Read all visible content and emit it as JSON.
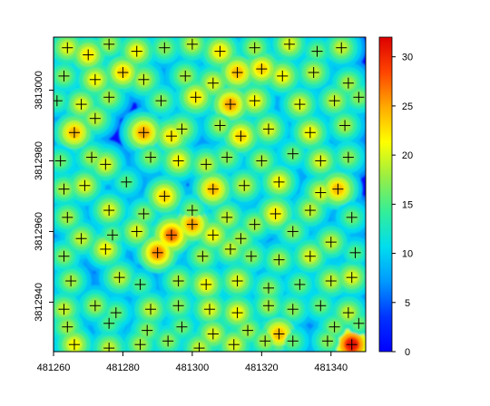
{
  "chart_data": {
    "type": "heatmap",
    "title": "",
    "xlabel": "",
    "ylabel": "",
    "xlim": [
      481260,
      481350
    ],
    "ylim": [
      3812926,
      3813015
    ],
    "x_ticks": [
      481260,
      481280,
      481300,
      481320,
      481340
    ],
    "x_tick_labels": [
      "481260",
      "481280",
      "481300",
      "481320",
      "481340"
    ],
    "y_ticks": [
      3812940,
      3812960,
      3812980,
      3813000
    ],
    "y_tick_labels": [
      "3812940",
      "3812960",
      "3812980",
      "3813000"
    ],
    "colorbar": {
      "range": [
        0,
        32
      ],
      "ticks": [
        0,
        5,
        10,
        15,
        20,
        25,
        30
      ],
      "tick_labels": [
        "0",
        "5",
        "10",
        "15",
        "20",
        "25",
        "30"
      ],
      "colors": [
        "#0000ff",
        "#0033ff",
        "#0099ff",
        "#00ddee",
        "#33ee99",
        "#99ee44",
        "#ffff00",
        "#ffaa00",
        "#ff4400",
        "#dd0000"
      ]
    },
    "background_color": "#0a0aff",
    "grid": false,
    "legend": "colorbar-right",
    "crowns": [
      {
        "x": 481264,
        "y": 3813012,
        "h": 20
      },
      {
        "x": 481270,
        "y": 3813010,
        "h": 22
      },
      {
        "x": 481276,
        "y": 3813013,
        "h": 18
      },
      {
        "x": 481284,
        "y": 3813011,
        "h": 21
      },
      {
        "x": 481292,
        "y": 3813012,
        "h": 17
      },
      {
        "x": 481300,
        "y": 3813013,
        "h": 19
      },
      {
        "x": 481308,
        "y": 3813011,
        "h": 22
      },
      {
        "x": 481318,
        "y": 3813012,
        "h": 18
      },
      {
        "x": 481328,
        "y": 3813013,
        "h": 20
      },
      {
        "x": 481336,
        "y": 3813011,
        "h": 16
      },
      {
        "x": 481343,
        "y": 3813012,
        "h": 19
      },
      {
        "x": 481263,
        "y": 3813004,
        "h": 17
      },
      {
        "x": 481272,
        "y": 3813003,
        "h": 21
      },
      {
        "x": 481280,
        "y": 3813005,
        "h": 23
      },
      {
        "x": 481286,
        "y": 3813003,
        "h": 19
      },
      {
        "x": 481298,
        "y": 3813004,
        "h": 18
      },
      {
        "x": 481306,
        "y": 3813002,
        "h": 20
      },
      {
        "x": 481313,
        "y": 3813005,
        "h": 24
      },
      {
        "x": 481320,
        "y": 3813006,
        "h": 23
      },
      {
        "x": 481326,
        "y": 3813004,
        "h": 21
      },
      {
        "x": 481335,
        "y": 3813005,
        "h": 19
      },
      {
        "x": 481345,
        "y": 3813002,
        "h": 18
      },
      {
        "x": 481261,
        "y": 3812997,
        "h": 15
      },
      {
        "x": 481268,
        "y": 3812996,
        "h": 20
      },
      {
        "x": 481276,
        "y": 3812998,
        "h": 18
      },
      {
        "x": 481291,
        "y": 3812997,
        "h": 17
      },
      {
        "x": 481301,
        "y": 3812998,
        "h": 22
      },
      {
        "x": 481311,
        "y": 3812996,
        "h": 25
      },
      {
        "x": 481318,
        "y": 3812997,
        "h": 21
      },
      {
        "x": 481331,
        "y": 3812996,
        "h": 20
      },
      {
        "x": 481341,
        "y": 3812997,
        "h": 19
      },
      {
        "x": 481348,
        "y": 3812998,
        "h": 17
      },
      {
        "x": 481266,
        "y": 3812988,
        "h": 24
      },
      {
        "x": 481272,
        "y": 3812992,
        "h": 19
      },
      {
        "x": 481286,
        "y": 3812988,
        "h": 25
      },
      {
        "x": 481297,
        "y": 3812989,
        "h": 19
      },
      {
        "x": 481308,
        "y": 3812990,
        "h": 18
      },
      {
        "x": 481314,
        "y": 3812987,
        "h": 23
      },
      {
        "x": 481322,
        "y": 3812989,
        "h": 20
      },
      {
        "x": 481334,
        "y": 3812988,
        "h": 21
      },
      {
        "x": 481344,
        "y": 3812990,
        "h": 18
      },
      {
        "x": 481294,
        "y": 3812987,
        "h": 22
      },
      {
        "x": 481262,
        "y": 3812980,
        "h": 16
      },
      {
        "x": 481271,
        "y": 3812981,
        "h": 18
      },
      {
        "x": 481275,
        "y": 3812979,
        "h": 20
      },
      {
        "x": 481288,
        "y": 3812981,
        "h": 17
      },
      {
        "x": 481296,
        "y": 3812980,
        "h": 21
      },
      {
        "x": 481304,
        "y": 3812979,
        "h": 19
      },
      {
        "x": 481310,
        "y": 3812981,
        "h": 17
      },
      {
        "x": 481320,
        "y": 3812980,
        "h": 18
      },
      {
        "x": 481329,
        "y": 3812982,
        "h": 16
      },
      {
        "x": 481337,
        "y": 3812980,
        "h": 20
      },
      {
        "x": 481345,
        "y": 3812981,
        "h": 17
      },
      {
        "x": 481263,
        "y": 3812972,
        "h": 18
      },
      {
        "x": 481269,
        "y": 3812973,
        "h": 20
      },
      {
        "x": 481281,
        "y": 3812974,
        "h": 15
      },
      {
        "x": 481292,
        "y": 3812970,
        "h": 23
      },
      {
        "x": 481306,
        "y": 3812972,
        "h": 24
      },
      {
        "x": 481315,
        "y": 3812973,
        "h": 19
      },
      {
        "x": 481325,
        "y": 3812974,
        "h": 21
      },
      {
        "x": 481337,
        "y": 3812971,
        "h": 20
      },
      {
        "x": 481342,
        "y": 3812972,
        "h": 24
      },
      {
        "x": 481300,
        "y": 3812966,
        "h": 17
      },
      {
        "x": 481264,
        "y": 3812964,
        "h": 18
      },
      {
        "x": 481276,
        "y": 3812966,
        "h": 20
      },
      {
        "x": 481286,
        "y": 3812965,
        "h": 17
      },
      {
        "x": 481310,
        "y": 3812964,
        "h": 19
      },
      {
        "x": 481318,
        "y": 3812962,
        "h": 18
      },
      {
        "x": 481324,
        "y": 3812965,
        "h": 22
      },
      {
        "x": 481334,
        "y": 3812966,
        "h": 19
      },
      {
        "x": 481346,
        "y": 3812964,
        "h": 16
      },
      {
        "x": 481268,
        "y": 3812958,
        "h": 19
      },
      {
        "x": 481277,
        "y": 3812959,
        "h": 16
      },
      {
        "x": 481284,
        "y": 3812960,
        "h": 20
      },
      {
        "x": 481294,
        "y": 3812959,
        "h": 27
      },
      {
        "x": 481300,
        "y": 3812962,
        "h": 25
      },
      {
        "x": 481306,
        "y": 3812959,
        "h": 21
      },
      {
        "x": 481314,
        "y": 3812958,
        "h": 18
      },
      {
        "x": 481329,
        "y": 3812960,
        "h": 17
      },
      {
        "x": 481340,
        "y": 3812957,
        "h": 19
      },
      {
        "x": 481263,
        "y": 3812953,
        "h": 17
      },
      {
        "x": 481275,
        "y": 3812955,
        "h": 21
      },
      {
        "x": 481290,
        "y": 3812954,
        "h": 26
      },
      {
        "x": 481303,
        "y": 3812953,
        "h": 18
      },
      {
        "x": 481311,
        "y": 3812955,
        "h": 19
      },
      {
        "x": 481317,
        "y": 3812953,
        "h": 17
      },
      {
        "x": 481325,
        "y": 3812952,
        "h": 18
      },
      {
        "x": 481334,
        "y": 3812953,
        "h": 20
      },
      {
        "x": 481347,
        "y": 3812954,
        "h": 15
      },
      {
        "x": 481265,
        "y": 3812946,
        "h": 18
      },
      {
        "x": 481279,
        "y": 3812947,
        "h": 19
      },
      {
        "x": 481285,
        "y": 3812945,
        "h": 15
      },
      {
        "x": 481296,
        "y": 3812946,
        "h": 18
      },
      {
        "x": 481304,
        "y": 3812945,
        "h": 21
      },
      {
        "x": 481313,
        "y": 3812946,
        "h": 20
      },
      {
        "x": 481322,
        "y": 3812944,
        "h": 17
      },
      {
        "x": 481331,
        "y": 3812945,
        "h": 16
      },
      {
        "x": 481340,
        "y": 3812946,
        "h": 19
      },
      {
        "x": 481346,
        "y": 3812947,
        "h": 20
      },
      {
        "x": 481263,
        "y": 3812938,
        "h": 19
      },
      {
        "x": 481272,
        "y": 3812939,
        "h": 18
      },
      {
        "x": 481278,
        "y": 3812937,
        "h": 16
      },
      {
        "x": 481288,
        "y": 3812938,
        "h": 19
      },
      {
        "x": 481296,
        "y": 3812939,
        "h": 17
      },
      {
        "x": 481305,
        "y": 3812938,
        "h": 20
      },
      {
        "x": 481313,
        "y": 3812937,
        "h": 21
      },
      {
        "x": 481322,
        "y": 3812939,
        "h": 18
      },
      {
        "x": 481329,
        "y": 3812938,
        "h": 17
      },
      {
        "x": 481337,
        "y": 3812939,
        "h": 16
      },
      {
        "x": 481345,
        "y": 3812937,
        "h": 19
      },
      {
        "x": 481264,
        "y": 3812933,
        "h": 18
      },
      {
        "x": 481276,
        "y": 3812934,
        "h": 15
      },
      {
        "x": 481287,
        "y": 3812932,
        "h": 17
      },
      {
        "x": 481297,
        "y": 3812933,
        "h": 16
      },
      {
        "x": 481306,
        "y": 3812931,
        "h": 20
      },
      {
        "x": 481316,
        "y": 3812932,
        "h": 18
      },
      {
        "x": 481325,
        "y": 3812931,
        "h": 24
      },
      {
        "x": 481341,
        "y": 3812933,
        "h": 17
      },
      {
        "x": 481348,
        "y": 3812934,
        "h": 16
      },
      {
        "x": 481266,
        "y": 3812928,
        "h": 21
      },
      {
        "x": 481276,
        "y": 3812927,
        "h": 19
      },
      {
        "x": 481285,
        "y": 3812928,
        "h": 18
      },
      {
        "x": 481293,
        "y": 3812929,
        "h": 17
      },
      {
        "x": 481302,
        "y": 3812927,
        "h": 19
      },
      {
        "x": 481312,
        "y": 3812928,
        "h": 20
      },
      {
        "x": 481321,
        "y": 3812929,
        "h": 18
      },
      {
        "x": 481329,
        "y": 3812929,
        "h": 16
      },
      {
        "x": 481339,
        "y": 3812929,
        "h": 17
      },
      {
        "x": 481346,
        "y": 3812928,
        "h": 31
      }
    ]
  }
}
